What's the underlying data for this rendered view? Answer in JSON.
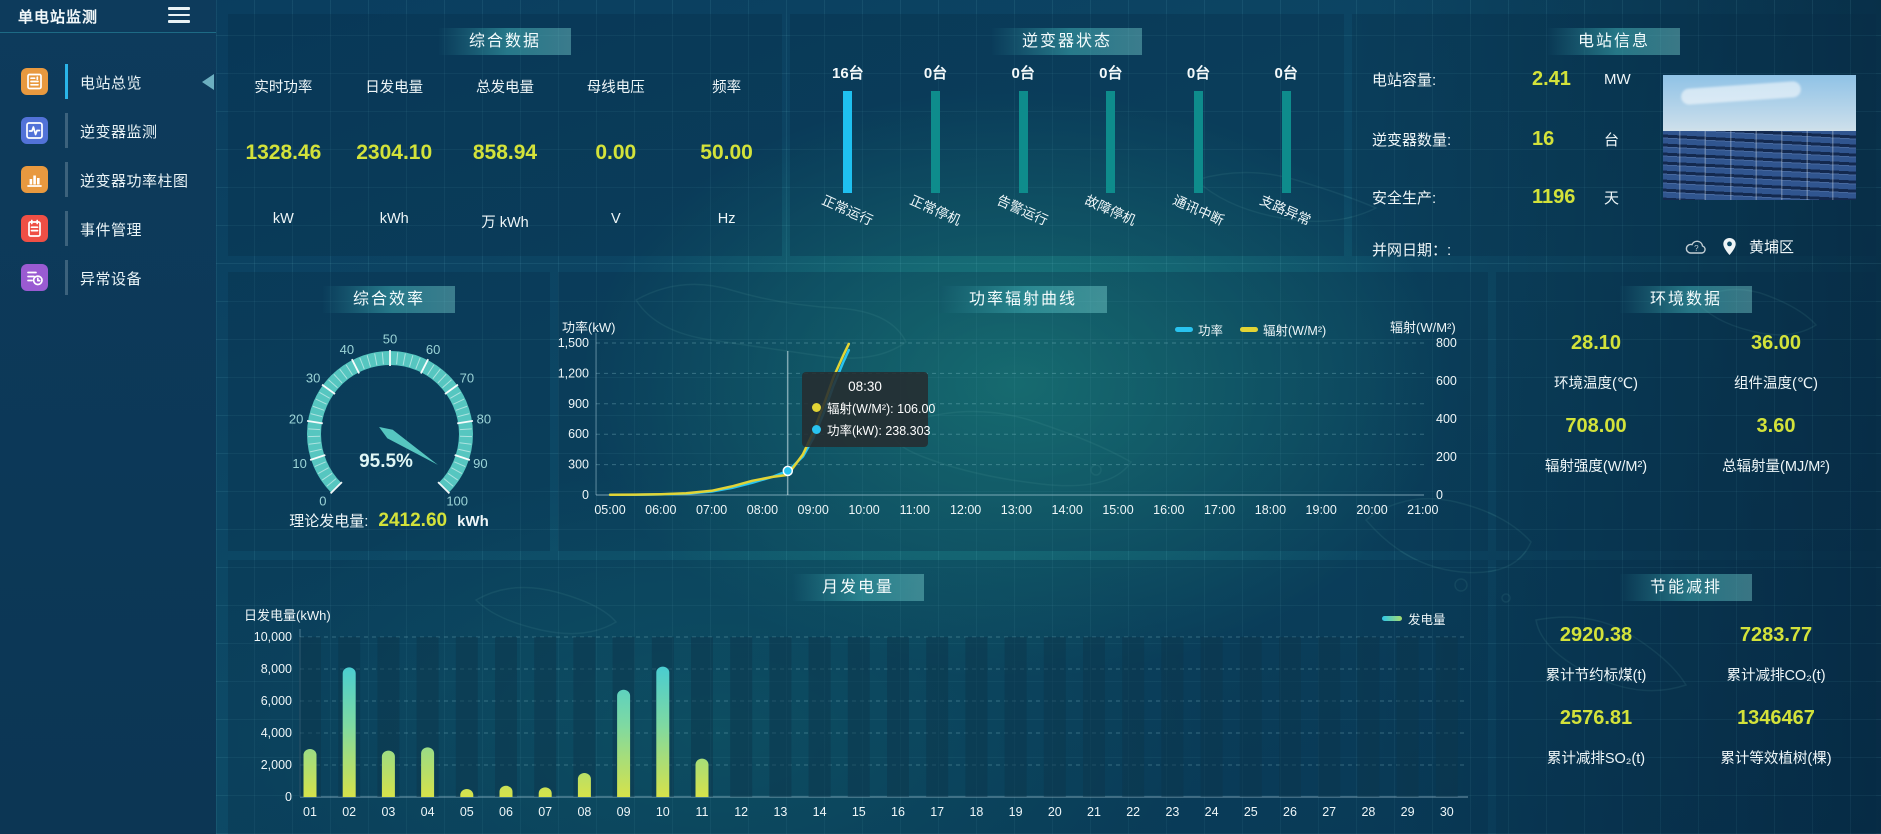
{
  "app": {
    "title": "单电站监测"
  },
  "icons": {
    "menu": "hamburger",
    "collapse": "chevron-left",
    "weather": "cloud",
    "location": "map-pin"
  },
  "colors": {
    "value_yellow": "#d3e23a",
    "power_cyan": "#29c3ef",
    "radiation_yellow": "#e2d435",
    "gauge_teal": "#56c6c0",
    "inverter_active": "#1fc0f0",
    "inverter_idle": "#0e8c8c"
  },
  "sidebar": {
    "items": [
      {
        "label": "电站总览",
        "icon": "station-overview-icon",
        "color": "#e8993f",
        "active": true
      },
      {
        "label": "逆变器监测",
        "icon": "inverter-monitor-icon",
        "color": "#5272d8",
        "active": false
      },
      {
        "label": "逆变器功率柱图",
        "icon": "inverter-power-bars-icon",
        "color": "#e8993f",
        "active": false
      },
      {
        "label": "事件管理",
        "icon": "event-management-icon",
        "color": "#ef4f45",
        "active": false
      },
      {
        "label": "异常设备",
        "icon": "abnormal-device-icon",
        "color": "#9a5bd2",
        "active": false
      }
    ]
  },
  "panels": {
    "summary": {
      "title": "综合数据",
      "metrics": [
        {
          "label": "实时功率",
          "value": "1328.46",
          "unit": "kW"
        },
        {
          "label": "日发电量",
          "value": "2304.10",
          "unit": "kWh"
        },
        {
          "label": "总发电量",
          "value": "858.94",
          "unit": "万 kWh"
        },
        {
          "label": "母线电压",
          "value": "0.00",
          "unit": "V"
        },
        {
          "label": "频率",
          "value": "50.00",
          "unit": "Hz"
        }
      ]
    },
    "inverter_status": {
      "title": "逆变器状态",
      "chart_data": {
        "type": "bar",
        "categories": [
          "正常运行",
          "正常停机",
          "告警运行",
          "故障停机",
          "通讯中断",
          "支路异常"
        ],
        "values": [
          16,
          0,
          0,
          0,
          0,
          0
        ],
        "value_labels": [
          "16台",
          "0台",
          "0台",
          "0台",
          "0台",
          "0台"
        ],
        "active_color": "#1fc0f0",
        "inactive_color": "#0e8c8c"
      }
    },
    "station_info": {
      "title": "电站信息",
      "rows": [
        {
          "label": "电站容量:",
          "value": "2.41",
          "unit": "MW"
        },
        {
          "label": "逆变器数量:",
          "value": "16",
          "unit": "台"
        },
        {
          "label": "安全生产:",
          "value": "1196",
          "unit": "天"
        },
        {
          "label": "并网日期：:",
          "value": "",
          "unit": ""
        }
      ],
      "location": "黄埔区"
    },
    "efficiency": {
      "title": "综合效率",
      "chart_data": {
        "type": "gauge",
        "min": 0,
        "max": 100,
        "value": 95.5,
        "display": "95.5%",
        "tick_labels": [
          0,
          10,
          20,
          30,
          40,
          50,
          60,
          70,
          80,
          90,
          100
        ]
      },
      "theory": {
        "label": "理论发电量:",
        "value": "2412.60",
        "unit": "kWh"
      }
    },
    "power_radiation": {
      "title": "功率辐射曲线",
      "chart_data": {
        "type": "line",
        "x_ticks": [
          "05:00",
          "06:00",
          "07:00",
          "08:00",
          "09:00",
          "10:00",
          "11:00",
          "12:00",
          "13:00",
          "14:00",
          "15:00",
          "16:00",
          "17:00",
          "18:00",
          "19:00",
          "20:00",
          "21:00"
        ],
        "x_range": [
          5,
          21
        ],
        "y_left": {
          "label": "功率(kW)",
          "ticks": [
            0,
            300,
            600,
            900,
            1200,
            1500
          ],
          "tick_labels": [
            "0",
            "300",
            "600",
            "900",
            "1,200",
            "1,500"
          ],
          "max": 1500
        },
        "y_right": {
          "label": "辐射(W/M²)",
          "ticks": [
            0,
            200,
            400,
            600,
            800
          ],
          "tick_labels": [
            "0",
            "200",
            "400",
            "600",
            "800"
          ],
          "max": 800
        },
        "series": [
          {
            "name": "功率",
            "color": "#29c3ef",
            "axis": "left",
            "points": [
              [
                5,
                2
              ],
              [
                5.5,
                3
              ],
              [
                6,
                6
              ],
              [
                6.5,
                14
              ],
              [
                7,
                35
              ],
              [
                7.4,
                70
              ],
              [
                7.8,
                120
              ],
              [
                8.2,
                180
              ],
              [
                8.5,
                238
              ],
              [
                8.8,
                380
              ],
              [
                9,
                560
              ],
              [
                9.2,
                800
              ],
              [
                9.4,
                1080
              ],
              [
                9.6,
                1320
              ],
              [
                9.7,
                1430
              ]
            ]
          },
          {
            "name": "辐射(W/M²)",
            "color": "#e2d435",
            "axis": "right",
            "points": [
              [
                5,
                1
              ],
              [
                5.5,
                2
              ],
              [
                6,
                4
              ],
              [
                6.5,
                9
              ],
              [
                7,
                22
              ],
              [
                7.4,
                45
              ],
              [
                7.8,
                75
              ],
              [
                8.2,
                95
              ],
              [
                8.5,
                106
              ],
              [
                8.8,
                215
              ],
              [
                9,
                330
              ],
              [
                9.2,
                470
              ],
              [
                9.4,
                620
              ],
              [
                9.6,
                740
              ],
              [
                9.7,
                795
              ]
            ]
          }
        ]
      },
      "tooltip": {
        "time": "08:30",
        "x_hour": 8.5,
        "marker_power": 238.303,
        "rows": [
          {
            "color": "#e2d435",
            "label": "辐射(W/M²): 106.00"
          },
          {
            "color": "#29c3ef",
            "label": "功率(kW): 238.303"
          }
        ]
      }
    },
    "environment": {
      "title": "环境数据",
      "stats": [
        {
          "value": "28.10",
          "label": "环境温度(℃)"
        },
        {
          "value": "36.00",
          "label": "组件温度(℃)"
        },
        {
          "value": "708.00",
          "label": "辐射强度(W/M²)"
        },
        {
          "value": "3.60",
          "label": "总辐射量(MJ/M²)"
        }
      ]
    },
    "monthly": {
      "title": "月发电量",
      "chart_data": {
        "type": "bar",
        "ylabel": "日发电量(kWh)",
        "categories": [
          "01",
          "02",
          "03",
          "04",
          "05",
          "06",
          "07",
          "08",
          "09",
          "10",
          "11",
          "12",
          "13",
          "14",
          "15",
          "16",
          "17",
          "18",
          "19",
          "20",
          "21",
          "22",
          "23",
          "24",
          "25",
          "26",
          "27",
          "28",
          "29",
          "30"
        ],
        "values": [
          3000,
          8100,
          2900,
          3100,
          500,
          700,
          600,
          1500,
          6700,
          8150,
          2400,
          0,
          0,
          0,
          0,
          0,
          0,
          0,
          0,
          0,
          0,
          0,
          0,
          0,
          0,
          0,
          0,
          0,
          0,
          0
        ],
        "yticks": [
          0,
          2000,
          4000,
          6000,
          8000,
          10000
        ],
        "ytick_labels": [
          "0",
          "2,000",
          "4,000",
          "6,000",
          "8,000",
          "10,000"
        ],
        "ymax": 10000,
        "legend": "发电量",
        "bar_gradient": [
          "#2fc6e8",
          "#d6e24a"
        ]
      }
    },
    "savings": {
      "title": "节能减排",
      "stats": [
        {
          "value": "2920.38",
          "label": "累计节约标煤(t)"
        },
        {
          "value": "7283.77",
          "label": "累计减排CO₂(t)"
        },
        {
          "value": "2576.81",
          "label": "累计减排SO₂(t)"
        },
        {
          "value": "1346467",
          "label": "累计等效植树(棵)"
        }
      ]
    }
  }
}
